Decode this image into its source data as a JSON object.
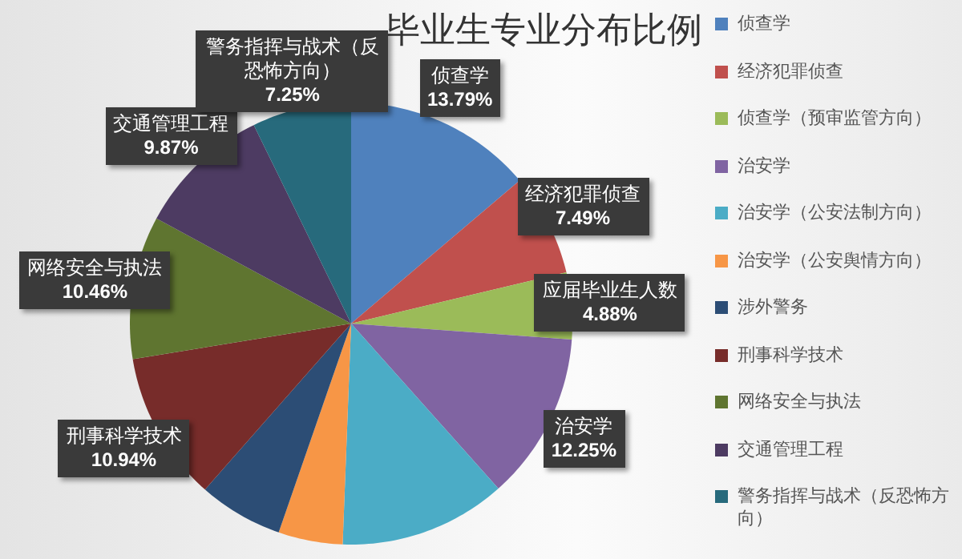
{
  "chart_data": {
    "type": "pie",
    "title": "毕业生专业分布比例",
    "categories": [
      "侦查学",
      "经济犯罪侦查",
      "侦查学（预审监管方向）",
      "治安学",
      "治安学（公安法制方向）",
      "治安学（公安舆情方向）",
      "涉外警务",
      "刑事科学技术",
      "网络安全与执法",
      "交通管理工程",
      "警务指挥与战术（反恐怖方向）"
    ],
    "values": [
      13.79,
      7.49,
      4.88,
      12.25,
      12.2,
      4.7,
      6.17,
      10.94,
      10.46,
      9.87,
      7.25
    ],
    "colors": [
      "#4f81bd",
      "#c0504d",
      "#9bbb59",
      "#8064a2",
      "#4bacc6",
      "#f79646",
      "#2c4d75",
      "#772c2a",
      "#5f7530",
      "#4d3b62",
      "#276a7c"
    ],
    "value_labels": [
      "13.79%",
      "7.49%",
      "4.88%",
      "12.25%",
      null,
      null,
      null,
      "10.94%",
      "10.46%",
      "9.87%",
      "7.25%"
    ],
    "annotations": [
      {
        "text": "应届毕业生人数",
        "x": "侦查学（预审监管方向）"
      }
    ],
    "legend": "right"
  }
}
